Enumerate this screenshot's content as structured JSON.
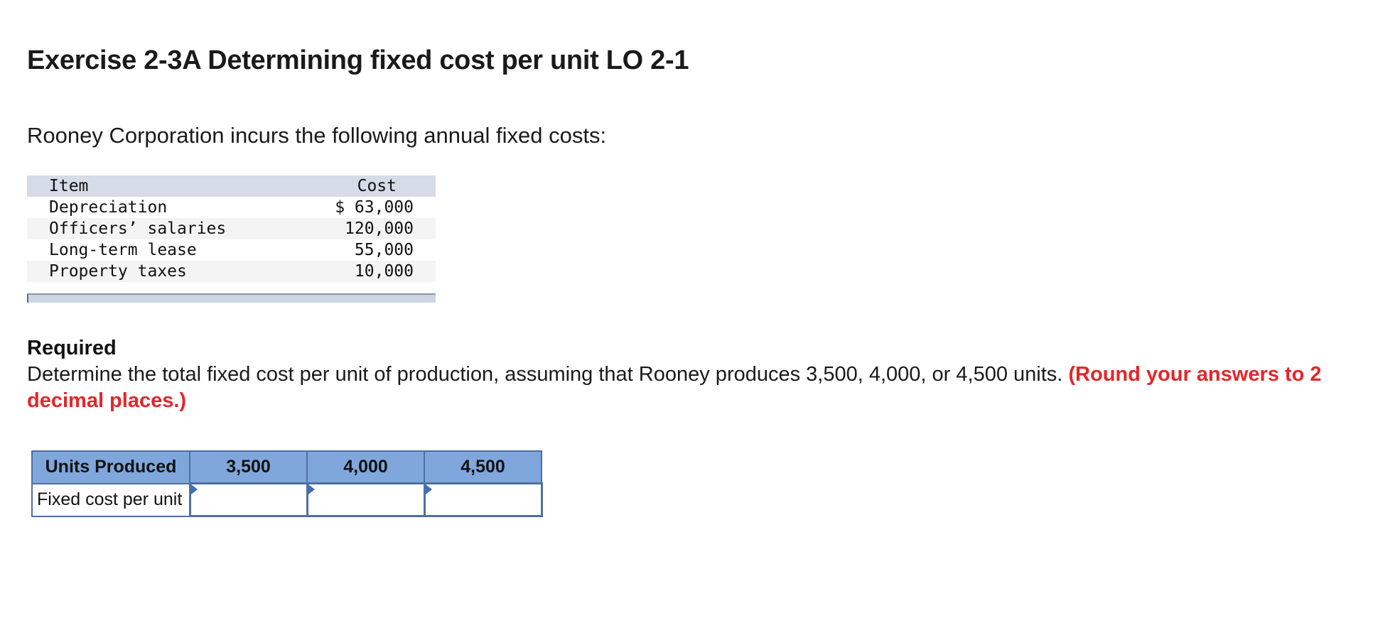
{
  "exercise": {
    "title": "Exercise 2-3A Determining fixed cost per unit LO 2-1"
  },
  "intro": {
    "text": "Rooney Corporation incurs the following annual fixed costs:"
  },
  "cost_table": {
    "headers": {
      "item": "Item",
      "cost": "Cost"
    },
    "rows": [
      {
        "item": "Depreciation",
        "cost": "$ 63,000"
      },
      {
        "item": "Officers’ salaries",
        "cost": "120,000"
      },
      {
        "item": "Long-term lease",
        "cost": "55,000"
      },
      {
        "item": "Property taxes",
        "cost": "10,000"
      }
    ]
  },
  "required": {
    "title": "Required",
    "text": "Determine the total fixed cost per unit of production, assuming that Rooney produces 3,500, 4,000, or 4,500 units. ",
    "note": "(Round your answers to 2 decimal places.)"
  },
  "answer_grid": {
    "header_label": "Units Produced",
    "units": [
      "3,500",
      "4,000",
      "4,500"
    ],
    "row_label": "Fixed cost per unit",
    "inputs": [
      "",
      "",
      ""
    ]
  },
  "colors": {
    "note_red": "#e3262a",
    "grid_header_blue": "#7fa7dc",
    "grid_border_blue": "#4f6fa0",
    "table_header_gray_blue": "#d5dbe7"
  }
}
